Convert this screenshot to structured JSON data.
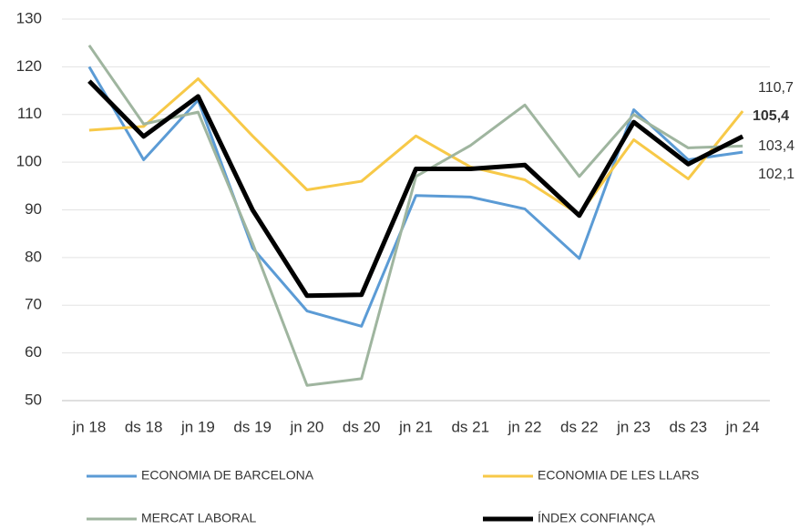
{
  "chart_data": {
    "type": "line",
    "categories": [
      "jn 18",
      "ds 18",
      "jn 19",
      "ds 19",
      "jn 20",
      "ds 20",
      "jn 21",
      "ds 21",
      "jn 22",
      "ds 22",
      "jn 23",
      "ds 23",
      "jn 24"
    ],
    "series": [
      {
        "name": "ECONOMIA DE BARCELONA",
        "color": "#5b9bd5",
        "values": [
          120,
          100.5,
          113,
          82,
          68.8,
          65.6,
          93,
          92.7,
          90.2,
          79.8,
          111,
          100.5,
          102.1
        ],
        "value_labels": [
          null,
          null,
          null,
          null,
          null,
          null,
          null,
          null,
          null,
          null,
          null,
          null,
          "102,1"
        ]
      },
      {
        "name": "ECONOMIA DE LES LLARS",
        "color": "#f7c948",
        "values": [
          106.7,
          107.5,
          117.5,
          105.5,
          94.2,
          96,
          105.5,
          99,
          96.3,
          89,
          104.7,
          96.5,
          110.7
        ],
        "value_labels": [
          null,
          null,
          null,
          null,
          null,
          null,
          null,
          null,
          null,
          null,
          null,
          null,
          "110,7"
        ]
      },
      {
        "name": "MERCAT LABORAL",
        "color": "#9fb59f",
        "values": [
          124.5,
          108,
          110.5,
          83,
          53.2,
          54.6,
          97,
          103.5,
          112,
          97,
          110,
          103,
          103.4
        ],
        "value_labels": [
          null,
          null,
          null,
          null,
          null,
          null,
          null,
          null,
          null,
          null,
          null,
          null,
          "103,4"
        ]
      },
      {
        "name": "ÍNDEX CONFIANÇA",
        "color": "#000000",
        "values": [
          117,
          105.4,
          113.8,
          90,
          72,
          72.2,
          98.6,
          98.6,
          99.4,
          88.8,
          108.4,
          99.6,
          105.4
        ],
        "value_labels": [
          null,
          null,
          null,
          null,
          null,
          null,
          null,
          null,
          null,
          null,
          null,
          null,
          "105,4"
        ]
      }
    ],
    "ylim": [
      50,
      130
    ],
    "yticks": [
      50,
      60,
      70,
      80,
      90,
      100,
      110,
      120,
      130
    ],
    "grid": true
  }
}
